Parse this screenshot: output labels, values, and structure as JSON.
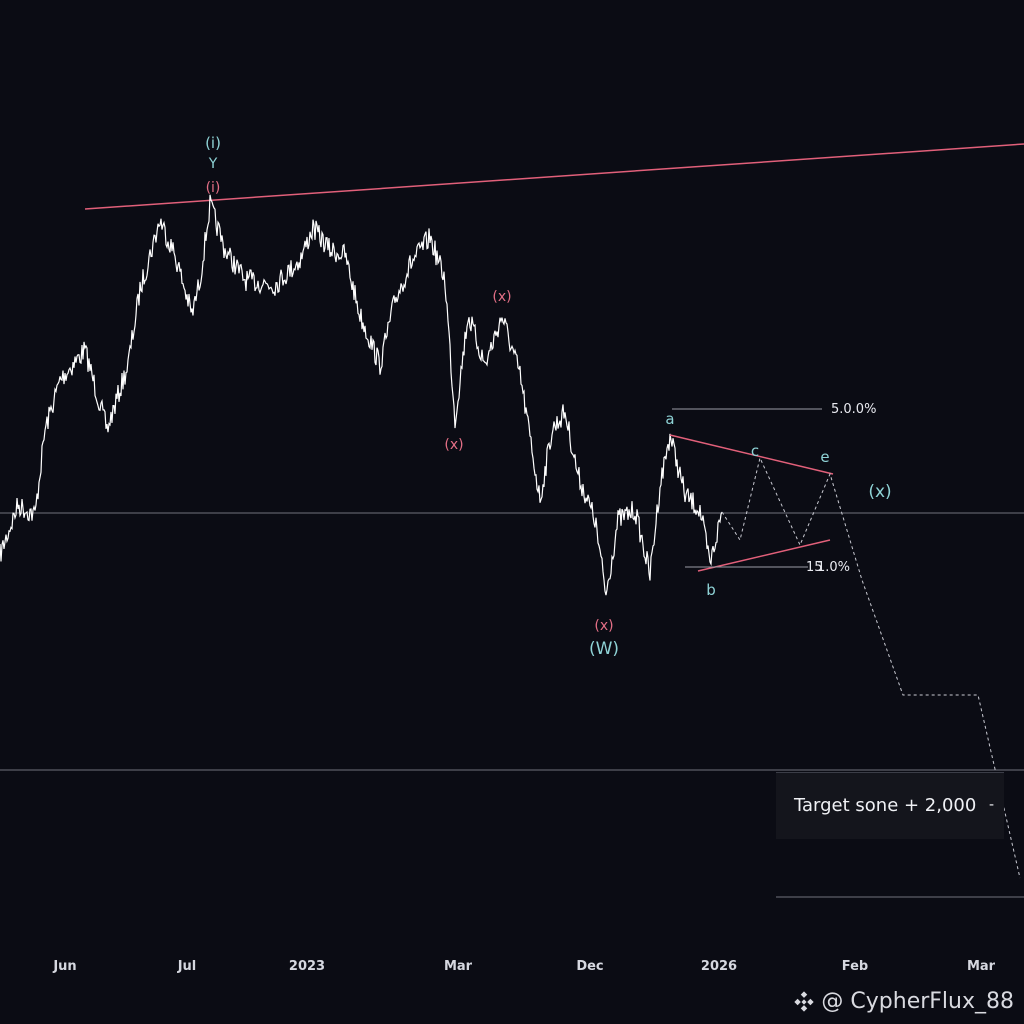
{
  "chart_data": {
    "type": "line",
    "x_tick_labels": [
      "Jun",
      "Jul",
      "2023",
      "Mar",
      "Dec",
      "2026",
      "Feb",
      "Mar"
    ],
    "wave_labels": {
      "i_top": "(i)",
      "y_top": "Y",
      "i_pink": "(i)",
      "x1": "(x)",
      "x2": "(x)",
      "x3": "(x)",
      "w": "(W)",
      "a": "a",
      "b": "b",
      "c": "c",
      "e": "e",
      "x_right": "(x)"
    },
    "percent_labels": {
      "upper": "5.0.0%",
      "lower": "1.0%",
      "lower_prefix": "15"
    },
    "annotation": "Target sone + 2,000",
    "colors": {
      "background": "#0b0c14",
      "price": "#ffffff",
      "trendline": "#e2607a",
      "wave_cyan": "#8fd3d6",
      "wave_pink": "#e36f86",
      "projection": "#c9cad2",
      "hline": "#8a8c96"
    }
  },
  "watermark": {
    "text": "@ CypherFlux_88",
    "icon": "binance-icon"
  }
}
